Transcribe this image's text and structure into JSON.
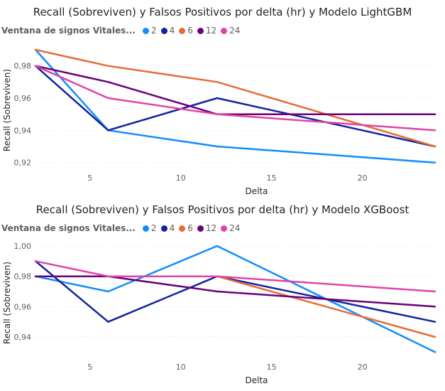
{
  "chart_data": [
    {
      "type": "line",
      "title": "Recall (Sobreviven) y Falsos Positivos por delta (hr) y Modelo LightGBM",
      "xlabel": "Delta",
      "ylabel": "Recall (Sobreviven)",
      "legend_title": "Ventana de signos Vitales...",
      "x": [
        2,
        6,
        12,
        24
      ],
      "xlim": [
        2,
        24
      ],
      "ylim": [
        0.915,
        0.99
      ],
      "xticks": [
        5,
        10,
        15,
        20
      ],
      "xtick_labels": [
        "5",
        "10",
        "15",
        "20"
      ],
      "yticks": [
        0.92,
        0.94,
        0.96,
        0.98
      ],
      "ytick_labels": [
        "0,92",
        "0,94",
        "0,96",
        "0,98"
      ],
      "grid": true,
      "legend_position": "top-left",
      "series": [
        {
          "name": "2",
          "color": "#118DFF",
          "values": [
            0.99,
            0.94,
            0.93,
            0.92
          ]
        },
        {
          "name": "4",
          "color": "#12239E",
          "values": [
            0.98,
            0.94,
            0.96,
            0.93
          ]
        },
        {
          "name": "6",
          "color": "#E66C37",
          "values": [
            0.99,
            0.98,
            0.97,
            0.93
          ]
        },
        {
          "name": "12",
          "color": "#6B007B",
          "values": [
            0.98,
            0.97,
            0.95,
            0.95
          ]
        },
        {
          "name": "24",
          "color": "#E044A7",
          "values": [
            0.98,
            0.96,
            0.95,
            0.94
          ]
        }
      ]
    },
    {
      "type": "line",
      "title": "Recall (Sobreviven) y Falsos Positivos por delta (hr) y Modelo XGBoost",
      "xlabel": "Delta",
      "ylabel": "Recall (Sobreviven)",
      "legend_title": "Ventana de signos Vitales...",
      "x": [
        2,
        6,
        12,
        24
      ],
      "xlim": [
        2,
        24
      ],
      "ylim": [
        0.925,
        1.0
      ],
      "xticks": [
        5,
        10,
        15,
        20
      ],
      "xtick_labels": [
        "5",
        "10",
        "15",
        "20"
      ],
      "yticks": [
        0.94,
        0.96,
        0.98,
        1.0
      ],
      "ytick_labels": [
        "0,94",
        "0,96",
        "0,98",
        "1,00"
      ],
      "grid": true,
      "legend_position": "top-left",
      "series": [
        {
          "name": "2",
          "color": "#118DFF",
          "values": [
            0.98,
            0.97,
            1.0,
            0.93
          ]
        },
        {
          "name": "4",
          "color": "#12239E",
          "values": [
            0.99,
            0.95,
            0.98,
            0.95
          ]
        },
        {
          "name": "6",
          "color": "#E66C37",
          "values": [
            0.98,
            0.98,
            0.98,
            0.94
          ]
        },
        {
          "name": "12",
          "color": "#6B007B",
          "values": [
            0.98,
            0.98,
            0.97,
            0.96
          ]
        },
        {
          "name": "24",
          "color": "#E044A7",
          "values": [
            0.99,
            0.98,
            0.98,
            0.97
          ]
        }
      ]
    }
  ]
}
